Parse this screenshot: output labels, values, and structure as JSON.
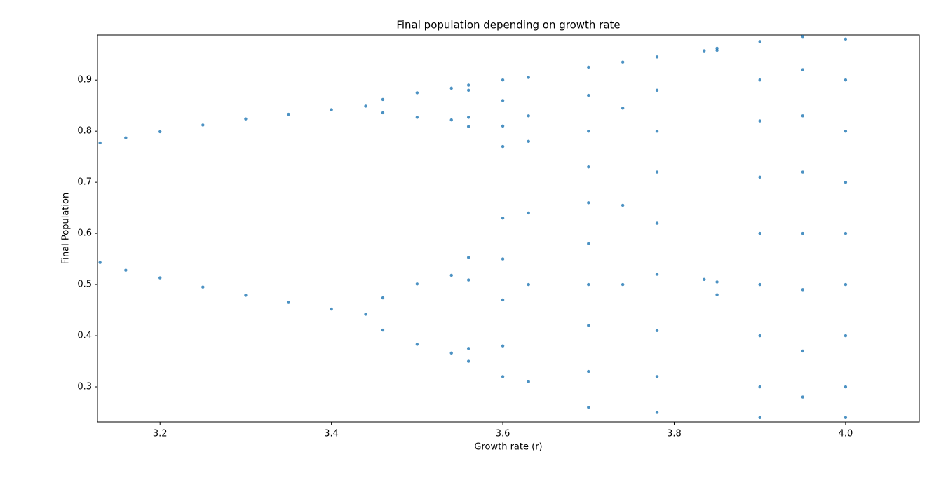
{
  "chart_data": {
    "type": "scatter",
    "title": "Final population depending on growth rate",
    "x_label": "Growth rate (r)",
    "y_label": "Final Population",
    "color": "#1f77b4",
    "xlim": [
      3.127,
      4.086
    ],
    "ylim": [
      0.2315,
      0.988
    ],
    "xticks": [
      3.2,
      3.4,
      3.6,
      3.8,
      {
        "value": 4,
        "label": "4.0"
      }
    ],
    "yticks": [
      0.3,
      0.4,
      0.5,
      0.6,
      0.7,
      0.8,
      0.9
    ],
    "x": [
      3.13,
      3.13,
      3.16,
      3.16,
      3.2,
      3.2,
      3.25,
      3.25,
      3.3,
      3.3,
      3.35,
      3.35,
      3.4,
      3.4,
      3.44,
      3.44,
      3.46,
      3.46,
      3.46,
      3.46,
      3.5,
      3.5,
      3.5,
      3.5,
      3.54,
      3.54,
      3.54,
      3.54,
      3.56,
      3.56,
      3.56,
      3.56,
      3.56,
      3.56,
      3.56,
      3.56,
      3.6,
      3.6,
      3.6,
      3.6,
      3.6,
      3.6,
      3.6,
      3.6,
      3.6,
      3.63,
      3.63,
      3.63,
      3.63,
      3.63,
      3.63,
      3.7,
      3.7,
      3.7,
      3.7,
      3.7,
      3.7,
      3.7,
      3.7,
      3.7,
      3.7,
      3.74,
      3.74,
      3.74,
      3.74,
      3.78,
      3.78,
      3.78,
      3.78,
      3.78,
      3.78,
      3.78,
      3.78,
      3.78,
      3.835,
      3.835,
      3.85,
      3.85,
      3.85,
      3.85,
      3.9,
      3.9,
      3.9,
      3.9,
      3.9,
      3.9,
      3.9,
      3.9,
      3.9,
      3.95,
      3.95,
      3.95,
      3.95,
      3.95,
      3.95,
      3.95,
      3.95,
      4.0,
      4.0,
      4.0,
      4.0,
      4.0,
      4.0,
      4.0,
      4.0,
      4.0
    ],
    "values": [
      0.777,
      0.543,
      0.787,
      0.528,
      0.799,
      0.513,
      0.812,
      0.495,
      0.824,
      0.479,
      0.833,
      0.465,
      0.842,
      0.452,
      0.849,
      0.442,
      0.862,
      0.836,
      0.411,
      0.474,
      0.875,
      0.827,
      0.383,
      0.501,
      0.884,
      0.822,
      0.366,
      0.518,
      0.89,
      0.88,
      0.827,
      0.809,
      0.553,
      0.509,
      0.375,
      0.35,
      0.9,
      0.86,
      0.81,
      0.77,
      0.63,
      0.55,
      0.47,
      0.38,
      0.32,
      0.905,
      0.83,
      0.78,
      0.64,
      0.5,
      0.31,
      0.925,
      0.87,
      0.8,
      0.73,
      0.66,
      0.58,
      0.5,
      0.42,
      0.33,
      0.26,
      0.935,
      0.845,
      0.655,
      0.5,
      0.945,
      0.88,
      0.8,
      0.72,
      0.62,
      0.52,
      0.41,
      0.32,
      0.25,
      0.957,
      0.51,
      0.962,
      0.958,
      0.505,
      0.48,
      0.975,
      0.9,
      0.82,
      0.71,
      0.6,
      0.5,
      0.4,
      0.3,
      0.24,
      0.985,
      0.92,
      0.83,
      0.72,
      0.6,
      0.49,
      0.37,
      0.28,
      0.98,
      0.9,
      0.8,
      0.7,
      0.6,
      0.5,
      0.4,
      0.3,
      0.24
    ]
  }
}
